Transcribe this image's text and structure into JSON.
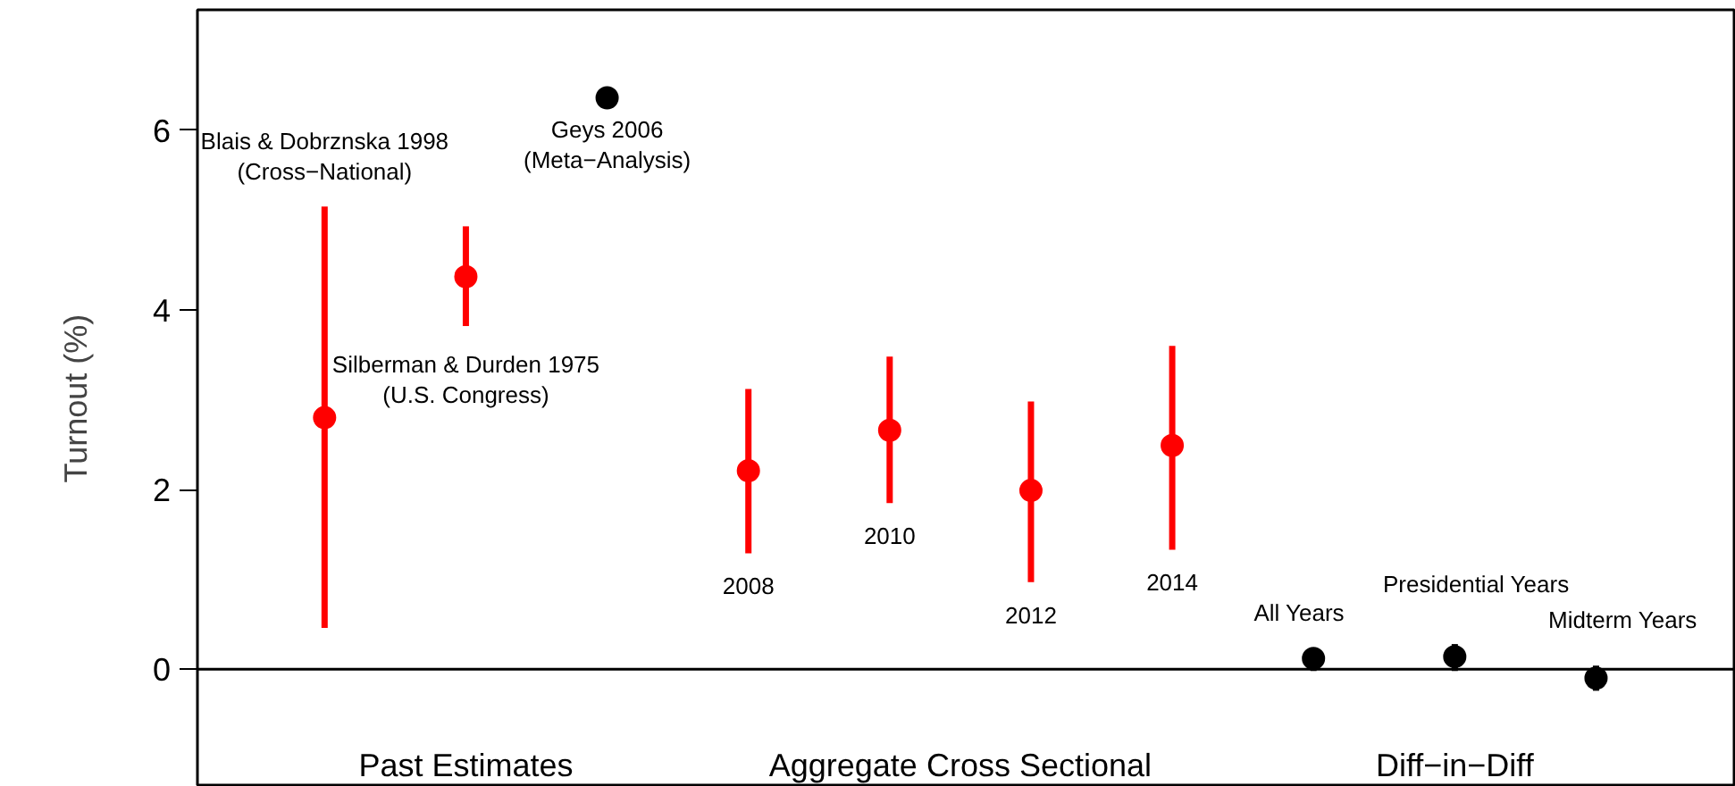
{
  "chart_data": {
    "type": "scatter",
    "ylabel": "Turnout (%)",
    "categories": [
      null,
      null,
      null,
      null,
      null,
      null,
      null,
      null,
      null,
      null
    ],
    "values": [
      2.8,
      4.37,
      6.36,
      2.21,
      2.66,
      1.99,
      2.49,
      0.12,
      0.14,
      -0.1
    ],
    "colors": [
      "#ff0000",
      "#ff0000",
      "#000000",
      "#ff0000",
      "#ff0000",
      "#ff0000",
      "#ff0000",
      "#000000",
      "#000000",
      "#000000"
    ],
    "errors": [
      [
        0.46,
        5.15
      ],
      [
        3.82,
        4.93
      ],
      null,
      [
        1.29,
        3.12
      ],
      [
        1.85,
        3.48
      ],
      [
        0.97,
        2.98
      ],
      [
        1.33,
        3.6
      ],
      [
        -0.02,
        0.24
      ],
      [
        -0.02,
        0.28
      ],
      [
        -0.24,
        0.04
      ]
    ],
    "ylim": [
      -1.31,
      7.34
    ],
    "yticks": [
      0,
      2,
      4,
      6
    ],
    "marker": "circle",
    "grid": false,
    "tick_labels": "y",
    "ref_lines": [
      {
        "axis": "y",
        "value": 0,
        "color": "#000000",
        "line_style": "solid"
      }
    ],
    "annotations": [
      "Blais & Dobrznska 1998\n(Cross−National)",
      "Silberman & Durden 1975\n(U.S. Congress)",
      "Geys 2006\n(Meta−Analysis)",
      "2008",
      "2010",
      "2012",
      "2014",
      "All Years",
      "Presidential Years",
      "Midterm Years",
      "Past Estimates",
      "Aggregate Cross Sectional",
      "Diff−in−Diff"
    ]
  }
}
